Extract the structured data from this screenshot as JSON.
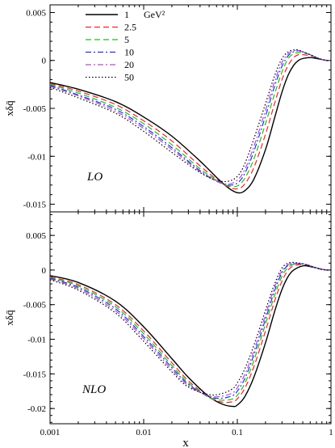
{
  "chart_data": [
    {
      "type": "line",
      "label": "LO",
      "ylabel": "xδq̄",
      "xlabel": "",
      "xscale": "log",
      "xlim": [
        0.001,
        1
      ],
      "ylim": [
        -0.0158,
        0.0058
      ],
      "yticks": [
        0.005,
        0,
        -0.005,
        -0.01,
        -0.015
      ],
      "ytick_labels": [
        "0.005",
        "0",
        "-0.005",
        "-0.01",
        "-0.015"
      ],
      "legend": {
        "position": "top-left",
        "entries": [
          "1",
          "2.5",
          "5",
          "10",
          "20",
          "50"
        ],
        "unit": "GeV²"
      },
      "x": [
        0.001,
        0.002,
        0.005,
        0.01,
        0.02,
        0.04,
        0.06,
        0.08,
        0.1,
        0.12,
        0.15,
        0.2,
        0.25,
        0.3,
        0.35,
        0.4,
        0.45,
        0.5,
        0.6,
        0.7,
        0.8,
        0.9,
        1.0
      ],
      "series": [
        {
          "name": "1",
          "color": "#000000",
          "dash": "solid",
          "values": [
            -0.0023,
            -0.003,
            -0.0043,
            -0.0059,
            -0.0079,
            -0.0105,
            -0.0122,
            -0.0133,
            -0.0138,
            -0.0136,
            -0.0124,
            -0.0093,
            -0.006,
            -0.0033,
            -0.0015,
            -0.0005,
            0.0,
            0.0002,
            0.0003,
            0.0002,
            0.0001,
            0.0,
            0.0
          ]
        },
        {
          "name": "2.5",
          "color": "#e8262b",
          "dash": "dash",
          "values": [
            -0.0024,
            -0.0032,
            -0.0046,
            -0.0063,
            -0.0084,
            -0.011,
            -0.0124,
            -0.0132,
            -0.0134,
            -0.0129,
            -0.0112,
            -0.0077,
            -0.0045,
            -0.002,
            -0.0005,
            0.0003,
            0.0006,
            0.0006,
            0.0005,
            0.0003,
            0.0001,
            0.0,
            0.0
          ]
        },
        {
          "name": "5",
          "color": "#22bb22",
          "dash": "dash",
          "values": [
            -0.0025,
            -0.0034,
            -0.0049,
            -0.0066,
            -0.0088,
            -0.0113,
            -0.0125,
            -0.0131,
            -0.0131,
            -0.0123,
            -0.0103,
            -0.0066,
            -0.0035,
            -0.0012,
            0.0002,
            0.0007,
            0.0008,
            0.0008,
            0.0006,
            0.0003,
            0.0001,
            0.0,
            0.0
          ]
        },
        {
          "name": "10",
          "color": "#2233dd",
          "dash": "dashdot",
          "values": [
            -0.0026,
            -0.0036,
            -0.0051,
            -0.0069,
            -0.0091,
            -0.0115,
            -0.0126,
            -0.013,
            -0.0128,
            -0.0118,
            -0.0095,
            -0.0058,
            -0.0027,
            -0.0006,
            0.0005,
            0.0009,
            0.001,
            0.0009,
            0.0006,
            0.0003,
            0.0001,
            0.0,
            0.0
          ]
        },
        {
          "name": "20",
          "color": "#b050c8",
          "dash": "dashdot",
          "values": [
            -0.0027,
            -0.0037,
            -0.0053,
            -0.0071,
            -0.0093,
            -0.0116,
            -0.0126,
            -0.0129,
            -0.0125,
            -0.0114,
            -0.009,
            -0.0052,
            -0.0022,
            -0.0002,
            0.0007,
            0.001,
            0.001,
            0.0009,
            0.0006,
            0.0003,
            0.0001,
            0.0,
            0.0
          ]
        },
        {
          "name": "50",
          "color": "#000000",
          "dash": "dot",
          "values": [
            -0.0028,
            -0.0039,
            -0.0055,
            -0.0074,
            -0.0096,
            -0.0117,
            -0.0125,
            -0.0126,
            -0.0121,
            -0.0108,
            -0.0082,
            -0.0045,
            -0.0016,
            0.0002,
            0.0009,
            0.0011,
            0.0011,
            0.0009,
            0.0006,
            0.0003,
            0.0001,
            0.0,
            0.0
          ]
        }
      ]
    },
    {
      "type": "line",
      "label": "NLO",
      "ylabel": "xδq̄",
      "xlabel": "x",
      "xscale": "log",
      "xlim": [
        0.001,
        1
      ],
      "ylim": [
        -0.0222,
        0.0084
      ],
      "yticks": [
        0.005,
        0,
        -0.005,
        -0.01,
        -0.015,
        -0.02
      ],
      "ytick_labels": [
        "0.005",
        "0",
        "-0.005",
        "-0.01",
        "-0.015",
        "-0.02"
      ],
      "xticks": [
        0.001,
        0.01,
        0.1,
        1
      ],
      "xtick_labels": [
        "0.001",
        "0.01",
        "0.1",
        "1"
      ],
      "x": [
        0.001,
        0.002,
        0.005,
        0.01,
        0.02,
        0.03,
        0.05,
        0.07,
        0.09,
        0.1,
        0.12,
        0.15,
        0.2,
        0.25,
        0.3,
        0.35,
        0.4,
        0.5,
        0.6,
        0.7,
        0.8,
        0.9,
        1.0
      ],
      "series": [
        {
          "name": "1",
          "color": "#000000",
          "dash": "solid",
          "values": [
            -0.0008,
            -0.0018,
            -0.0045,
            -0.0082,
            -0.0128,
            -0.0155,
            -0.0183,
            -0.0194,
            -0.0197,
            -0.0195,
            -0.0183,
            -0.0155,
            -0.0105,
            -0.006,
            -0.0028,
            -0.0009,
            0.0,
            0.0006,
            0.0005,
            0.0003,
            0.0001,
            0.0,
            0.0
          ]
        },
        {
          "name": "2.5",
          "color": "#e8262b",
          "dash": "dash",
          "values": [
            -0.001,
            -0.0021,
            -0.005,
            -0.0088,
            -0.0134,
            -0.016,
            -0.0184,
            -0.0191,
            -0.019,
            -0.0186,
            -0.0171,
            -0.014,
            -0.0088,
            -0.0045,
            -0.0016,
            0.0,
            0.0006,
            0.0008,
            0.0006,
            0.0003,
            0.0001,
            0.0,
            0.0
          ]
        },
        {
          "name": "5",
          "color": "#22bb22",
          "dash": "dash",
          "values": [
            -0.0011,
            -0.0023,
            -0.0053,
            -0.0092,
            -0.0138,
            -0.0163,
            -0.0184,
            -0.0188,
            -0.0186,
            -0.0181,
            -0.0164,
            -0.0131,
            -0.0078,
            -0.0037,
            -0.0009,
            0.0004,
            0.0008,
            0.0009,
            0.0006,
            0.0003,
            0.0001,
            0.0,
            0.0
          ]
        },
        {
          "name": "10",
          "color": "#2233dd",
          "dash": "dashdot",
          "values": [
            -0.0012,
            -0.0025,
            -0.0056,
            -0.0096,
            -0.0141,
            -0.0165,
            -0.0183,
            -0.0185,
            -0.0181,
            -0.0175,
            -0.0157,
            -0.0123,
            -0.0071,
            -0.003,
            -0.0004,
            0.0007,
            0.0009,
            0.0009,
            0.0006,
            0.0003,
            0.0001,
            0.0,
            0.0
          ]
        },
        {
          "name": "20",
          "color": "#b050c8",
          "dash": "dashdot",
          "values": [
            -0.0013,
            -0.0027,
            -0.0059,
            -0.0099,
            -0.0144,
            -0.0167,
            -0.0182,
            -0.0182,
            -0.0177,
            -0.017,
            -0.0151,
            -0.0117,
            -0.0065,
            -0.0025,
            -0.0001,
            0.0008,
            0.001,
            0.0009,
            0.0006,
            0.0003,
            0.0001,
            0.0,
            0.0
          ]
        },
        {
          "name": "50",
          "color": "#000000",
          "dash": "dot",
          "values": [
            -0.0014,
            -0.0029,
            -0.0062,
            -0.0103,
            -0.0147,
            -0.0169,
            -0.018,
            -0.0178,
            -0.0171,
            -0.0163,
            -0.0143,
            -0.0109,
            -0.0058,
            -0.002,
            0.0003,
            0.001,
            0.0011,
            0.0009,
            0.0006,
            0.0003,
            0.0001,
            0.0,
            0.0
          ]
        }
      ]
    }
  ]
}
